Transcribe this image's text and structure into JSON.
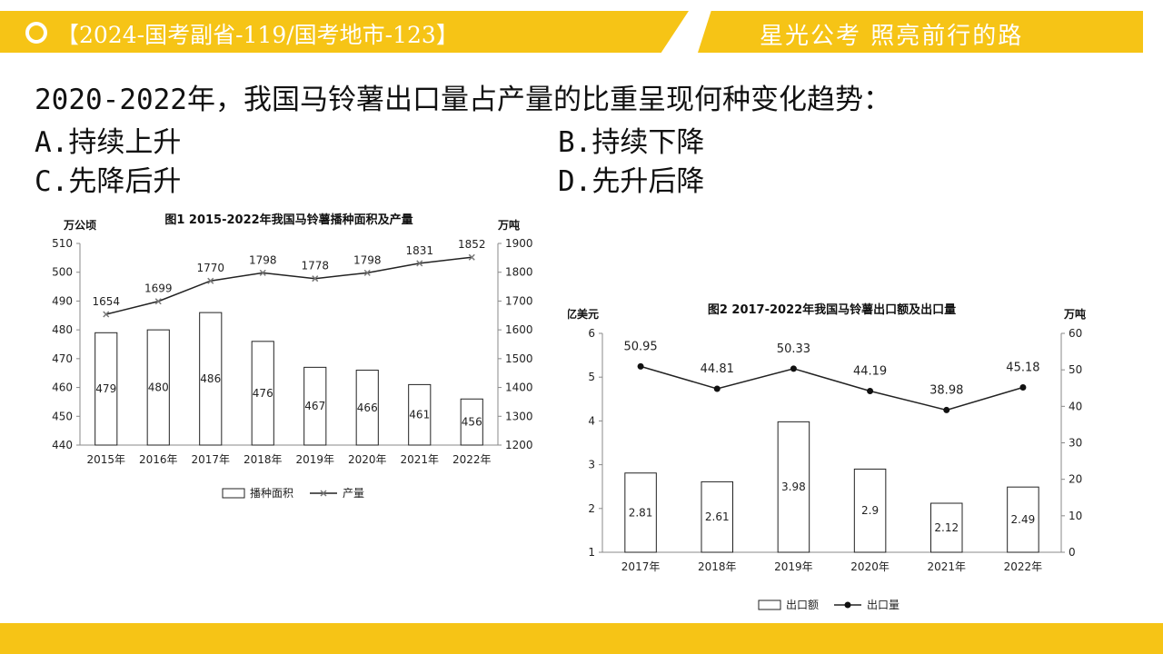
{
  "header": {
    "title": "【2024-国考副省-119/国考地市-123】",
    "slogan": "星光公考  照亮前行的路"
  },
  "question": {
    "text": "2020-2022年，我国马铃薯出口量占产量的比重呈现何种变化趋势：",
    "options": [
      "A.持续上升",
      "B.持续下降",
      "C.先降后升",
      "D.先升后降"
    ]
  },
  "colors": {
    "accent": "#f6c416"
  },
  "chart_data": [
    {
      "type": "bar",
      "title": "图1 2015-2022年我国马铃薯播种面积及产量",
      "ylabel_left": "万公顷",
      "ylabel_right": "万吨",
      "ylim_left": [
        440,
        510
      ],
      "ylim_right": [
        1200,
        1900
      ],
      "yticks_left": [
        "440",
        "450",
        "460",
        "470",
        "480",
        "490",
        "500",
        "510"
      ],
      "yticks_right": [
        "1200",
        "1300",
        "1400",
        "1500",
        "1600",
        "1700",
        "1800",
        "1900"
      ],
      "categories": [
        "2015年",
        "2016年",
        "2017年",
        "2018年",
        "2019年",
        "2020年",
        "2021年",
        "2022年"
      ],
      "series": [
        {
          "name": "播种面积",
          "type": "bar",
          "axis": "left",
          "values": [
            479,
            480,
            486,
            476,
            467,
            466,
            461,
            456
          ]
        },
        {
          "name": "产量",
          "type": "line",
          "axis": "right",
          "values": [
            1654,
            1699,
            1770,
            1798,
            1778,
            1798,
            1831,
            1852
          ]
        }
      ],
      "legend_position": "bottom"
    },
    {
      "type": "bar",
      "title": "图2 2017-2022年我国马铃薯出口额及出口量",
      "ylabel_left": "亿美元",
      "ylabel_right": "万吨",
      "ylim_left": [
        1,
        6
      ],
      "ylim_right": [
        0,
        60
      ],
      "yticks_left": [
        "1",
        "2",
        "3",
        "4",
        "5",
        "6"
      ],
      "yticks_right": [
        "0",
        "10",
        "20",
        "30",
        "40",
        "50",
        "60"
      ],
      "categories": [
        "2017年",
        "2018年",
        "2019年",
        "2020年",
        "2021年",
        "2022年"
      ],
      "series": [
        {
          "name": "出口额",
          "type": "bar",
          "axis": "left",
          "values": [
            2.81,
            2.61,
            3.98,
            2.9,
            2.12,
            2.49
          ],
          "labels": [
            "2.81",
            "2.61",
            "3.98",
            "2.9",
            "2.12",
            "2.49"
          ]
        },
        {
          "name": "出口量",
          "type": "line",
          "axis": "right",
          "values": [
            50.95,
            44.81,
            50.33,
            44.19,
            38.98,
            45.18
          ],
          "labels": [
            "50.95",
            "44.81",
            "50.33",
            "44.19",
            "38.98",
            "45.18"
          ]
        }
      ],
      "legend_position": "bottom"
    }
  ]
}
